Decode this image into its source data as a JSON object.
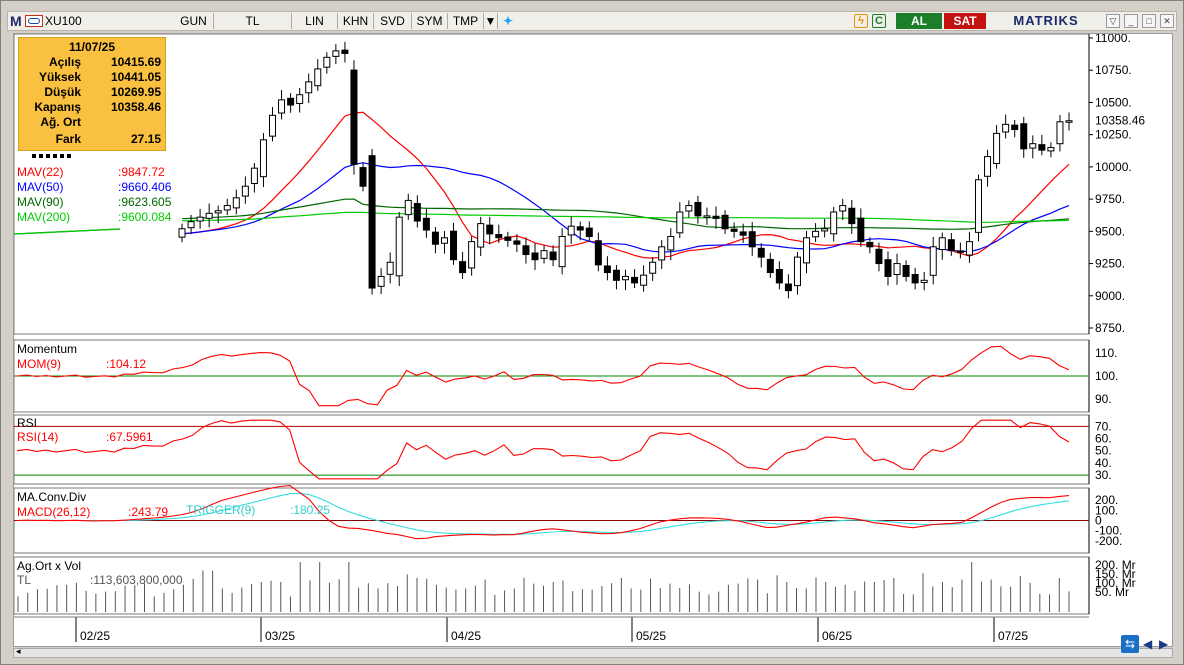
{
  "toolbar": {
    "logo_letter": "M",
    "symbol": "XU100",
    "periods": [
      "GUN",
      "TL",
      "LIN",
      "KHN",
      "SVD",
      "SYM",
      "TMP"
    ],
    "buy_label": "AL",
    "sell_label": "SAT",
    "brand": "MATRIKS",
    "accent_buy": "#1c7d2a",
    "accent_sell": "#c41212",
    "icons": [
      "lightning-icon",
      "refresh-icon",
      "dropdown-arrow-icon",
      "twitter-icon"
    ]
  },
  "info": {
    "date": "11/07/25",
    "rows": [
      {
        "label": "Açılış",
        "value": "10415.69"
      },
      {
        "label": "Yüksek",
        "value": "10441.05"
      },
      {
        "label": "Düşük",
        "value": "10269.95"
      },
      {
        "label": "Kapanış",
        "value": "10358.46"
      },
      {
        "label": "Ağ. Ort",
        "value": ""
      },
      {
        "label": "Fark",
        "value": "27.15"
      }
    ],
    "bg_color": "#f9c13f"
  },
  "price_panel": {
    "last_price": "10358.46",
    "legend": [
      {
        "label": "MAV(22)",
        "value": ":9847.72",
        "color": "#ff0000"
      },
      {
        "label": "MAV(50)",
        "value": ":9660.406",
        "color": "#0000ff"
      },
      {
        "label": "MAV(90)",
        "value": ":9623.605",
        "color": "#006600"
      },
      {
        "label": "MAV(200)",
        "value": ":9600.084",
        "color": "#00cc00"
      }
    ],
    "y_ticks": [
      "11000.",
      "10750.",
      "10500.",
      "10250.",
      "10000.",
      "9750.",
      "9500.",
      "9250.",
      "9000.",
      "8750."
    ]
  },
  "momentum_panel": {
    "title": "Momentum",
    "label": "MOM(9)",
    "value": ":104.12",
    "y_ticks": [
      "110.",
      "100.",
      "90."
    ]
  },
  "rsi_panel": {
    "title": "RSI",
    "label": "RSI(14)",
    "value": ":67.5961",
    "y_ticks": [
      "70.",
      "60.",
      "50.",
      "40.",
      "30."
    ]
  },
  "macd_panel": {
    "title": "MA.Conv.Div",
    "label": "MACD(26,12)",
    "value": ":243.79",
    "trigger_label": "TRIGGER(9)",
    "trigger_value": ":180.25",
    "y_ticks": [
      "200.",
      "100.",
      "0",
      "-100.",
      "-200."
    ]
  },
  "volume_panel": {
    "title": "Ag.Ort x Vol",
    "unit_label": "TL",
    "value": ":113,603,800,000",
    "y_ticks": [
      "200. Mr",
      "150. Mr",
      "100. Mr",
      "50. Mr"
    ]
  },
  "x_axis": [
    "02/25",
    "03/25",
    "04/25",
    "05/25",
    "06/25",
    "07/25"
  ],
  "chart_data": {
    "type": "candlestick",
    "symbol": "XU100",
    "period": "daily",
    "last_bar": {
      "date": "11/07/25",
      "open": 10415.69,
      "high": 10441.05,
      "low": 10269.95,
      "close": 10358.46
    },
    "closes": [
      9520,
      9575,
      9610,
      9640,
      9660,
      9700,
      9760,
      9850,
      9990,
      10210,
      10400,
      10520,
      10480,
      10560,
      10660,
      10760,
      10850,
      10900,
      10880,
      10020,
      9850,
      9060,
      9150,
      9260,
      9610,
      9740,
      9580,
      9510,
      9400,
      9450,
      9280,
      9180,
      9420,
      9560,
      9480,
      9450,
      9430,
      9400,
      9320,
      9280,
      9350,
      9280,
      9460,
      9540,
      9510,
      9460,
      9240,
      9180,
      9120,
      9150,
      9100,
      9160,
      9260,
      9380,
      9460,
      9650,
      9700,
      9620,
      9620,
      9600,
      9520,
      9500,
      9470,
      9380,
      9300,
      9180,
      9100,
      9040,
      9300,
      9450,
      9500,
      9520,
      9650,
      9700,
      9560,
      9420,
      9380,
      9250,
      9150,
      9250,
      9150,
      9100,
      9120,
      9380,
      9450,
      9350,
      9340,
      9420,
      9900,
      10080,
      10260,
      10330,
      10290,
      10140,
      10180,
      10130,
      10150,
      10350,
      10358
    ],
    "ma": {
      "MAV(22)": 9847.72,
      "MAV(50)": 9660.406,
      "MAV(90)": 9623.605,
      "MAV(200)": 9600.084
    },
    "indicators": {
      "MOM(9)": 104.12,
      "RSI(14)": 67.5961,
      "MACD(26,12)": 243.79,
      "TRIGGER(9)": 180.25,
      "volume": "113,603,800,000"
    },
    "price_ylim": [
      8750,
      11000
    ]
  }
}
